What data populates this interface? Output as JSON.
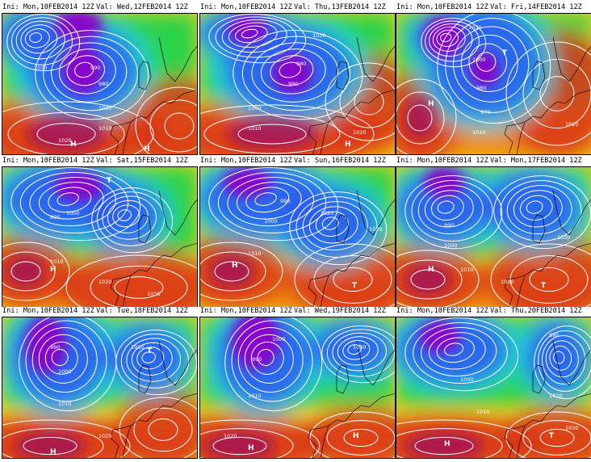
{
  "colors": {
    "low_deep": "#8a00c8",
    "low_mid": "#2a5cf0",
    "cyan": "#22d6d6",
    "green": "#2ad24a",
    "yellow": "#f2d21a",
    "orange": "#f08a10",
    "high": "#d83418",
    "high_core": "#a01058",
    "isobar": "#ffffff",
    "coast": "#000000"
  },
  "panels": [
    {
      "ini": "Ini: Mon,10FEB2014 12Z",
      "val": "Val: Wed,12FEB2014 12Z",
      "centers": [
        {
          "label": "H"
        },
        {
          "label": "H"
        }
      ],
      "isobars": [
        "990",
        "980",
        "1000",
        "1010",
        "1020",
        "1030"
      ]
    },
    {
      "ini": "Ini: Mon,10FEB2014 12Z",
      "val": "Val: Thu,13FEB2014 12Z",
      "centers": [
        {
          "label": "H"
        }
      ],
      "isobars": [
        "980",
        "990",
        "1000",
        "1010",
        "1020",
        "1030"
      ]
    },
    {
      "ini": "Ini: Mon,10FEB2014 12Z",
      "val": "Val: Fri,14FEB2014 12Z",
      "centers": [
        {
          "label": "H"
        },
        {
          "label": "T"
        }
      ],
      "isobars": [
        "970",
        "980",
        "1000",
        "1010",
        "1020",
        "1030"
      ]
    },
    {
      "ini": "Ini: Mon,10FEB2014 12Z",
      "val": "Val: Sat,15FEB2014 12Z",
      "centers": [
        {
          "label": "H"
        },
        {
          "label": "T"
        }
      ],
      "isobars": [
        "990",
        "1000",
        "1010",
        "1020",
        "1030"
      ]
    },
    {
      "ini": "Ini: Mon,10FEB2014 12Z",
      "val": "Val: Sun,16FEB2014 12Z",
      "centers": [
        {
          "label": "H"
        },
        {
          "label": "T"
        }
      ],
      "isobars": [
        "990",
        "1000",
        "1010",
        "1020",
        "1030"
      ]
    },
    {
      "ini": "Ini: Mon,10FEB2014 12Z",
      "val": "Val: Mon,17FEB2014 12Z",
      "centers": [
        {
          "label": "H"
        },
        {
          "label": "T"
        }
      ],
      "isobars": [
        "990",
        "1000",
        "1010",
        "1020",
        "1030"
      ]
    },
    {
      "ini": "Ini: Mon,10FEB2014 12Z",
      "val": "Val: Tue,18FEB2014 12Z",
      "centers": [
        {
          "label": "H"
        },
        {
          "label": "T"
        }
      ],
      "isobars": [
        "990",
        "1000",
        "1010",
        "1020",
        "1030"
      ]
    },
    {
      "ini": "Ini: Mon,10FEB2014 12Z",
      "val": "Val: Wed,19FEB2014 12Z",
      "centers": [
        {
          "label": "H"
        },
        {
          "label": "H"
        }
      ],
      "isobars": [
        "990",
        "1000",
        "1010",
        "1020",
        "1030"
      ]
    },
    {
      "ini": "Ini: Mon,10FEB2014 12Z",
      "val": "Val: Thu,20FEB2014 12Z",
      "centers": [
        {
          "label": "H"
        },
        {
          "label": "T"
        }
      ],
      "isobars": [
        "990",
        "1000",
        "1010",
        "1020",
        "1030"
      ]
    }
  ]
}
